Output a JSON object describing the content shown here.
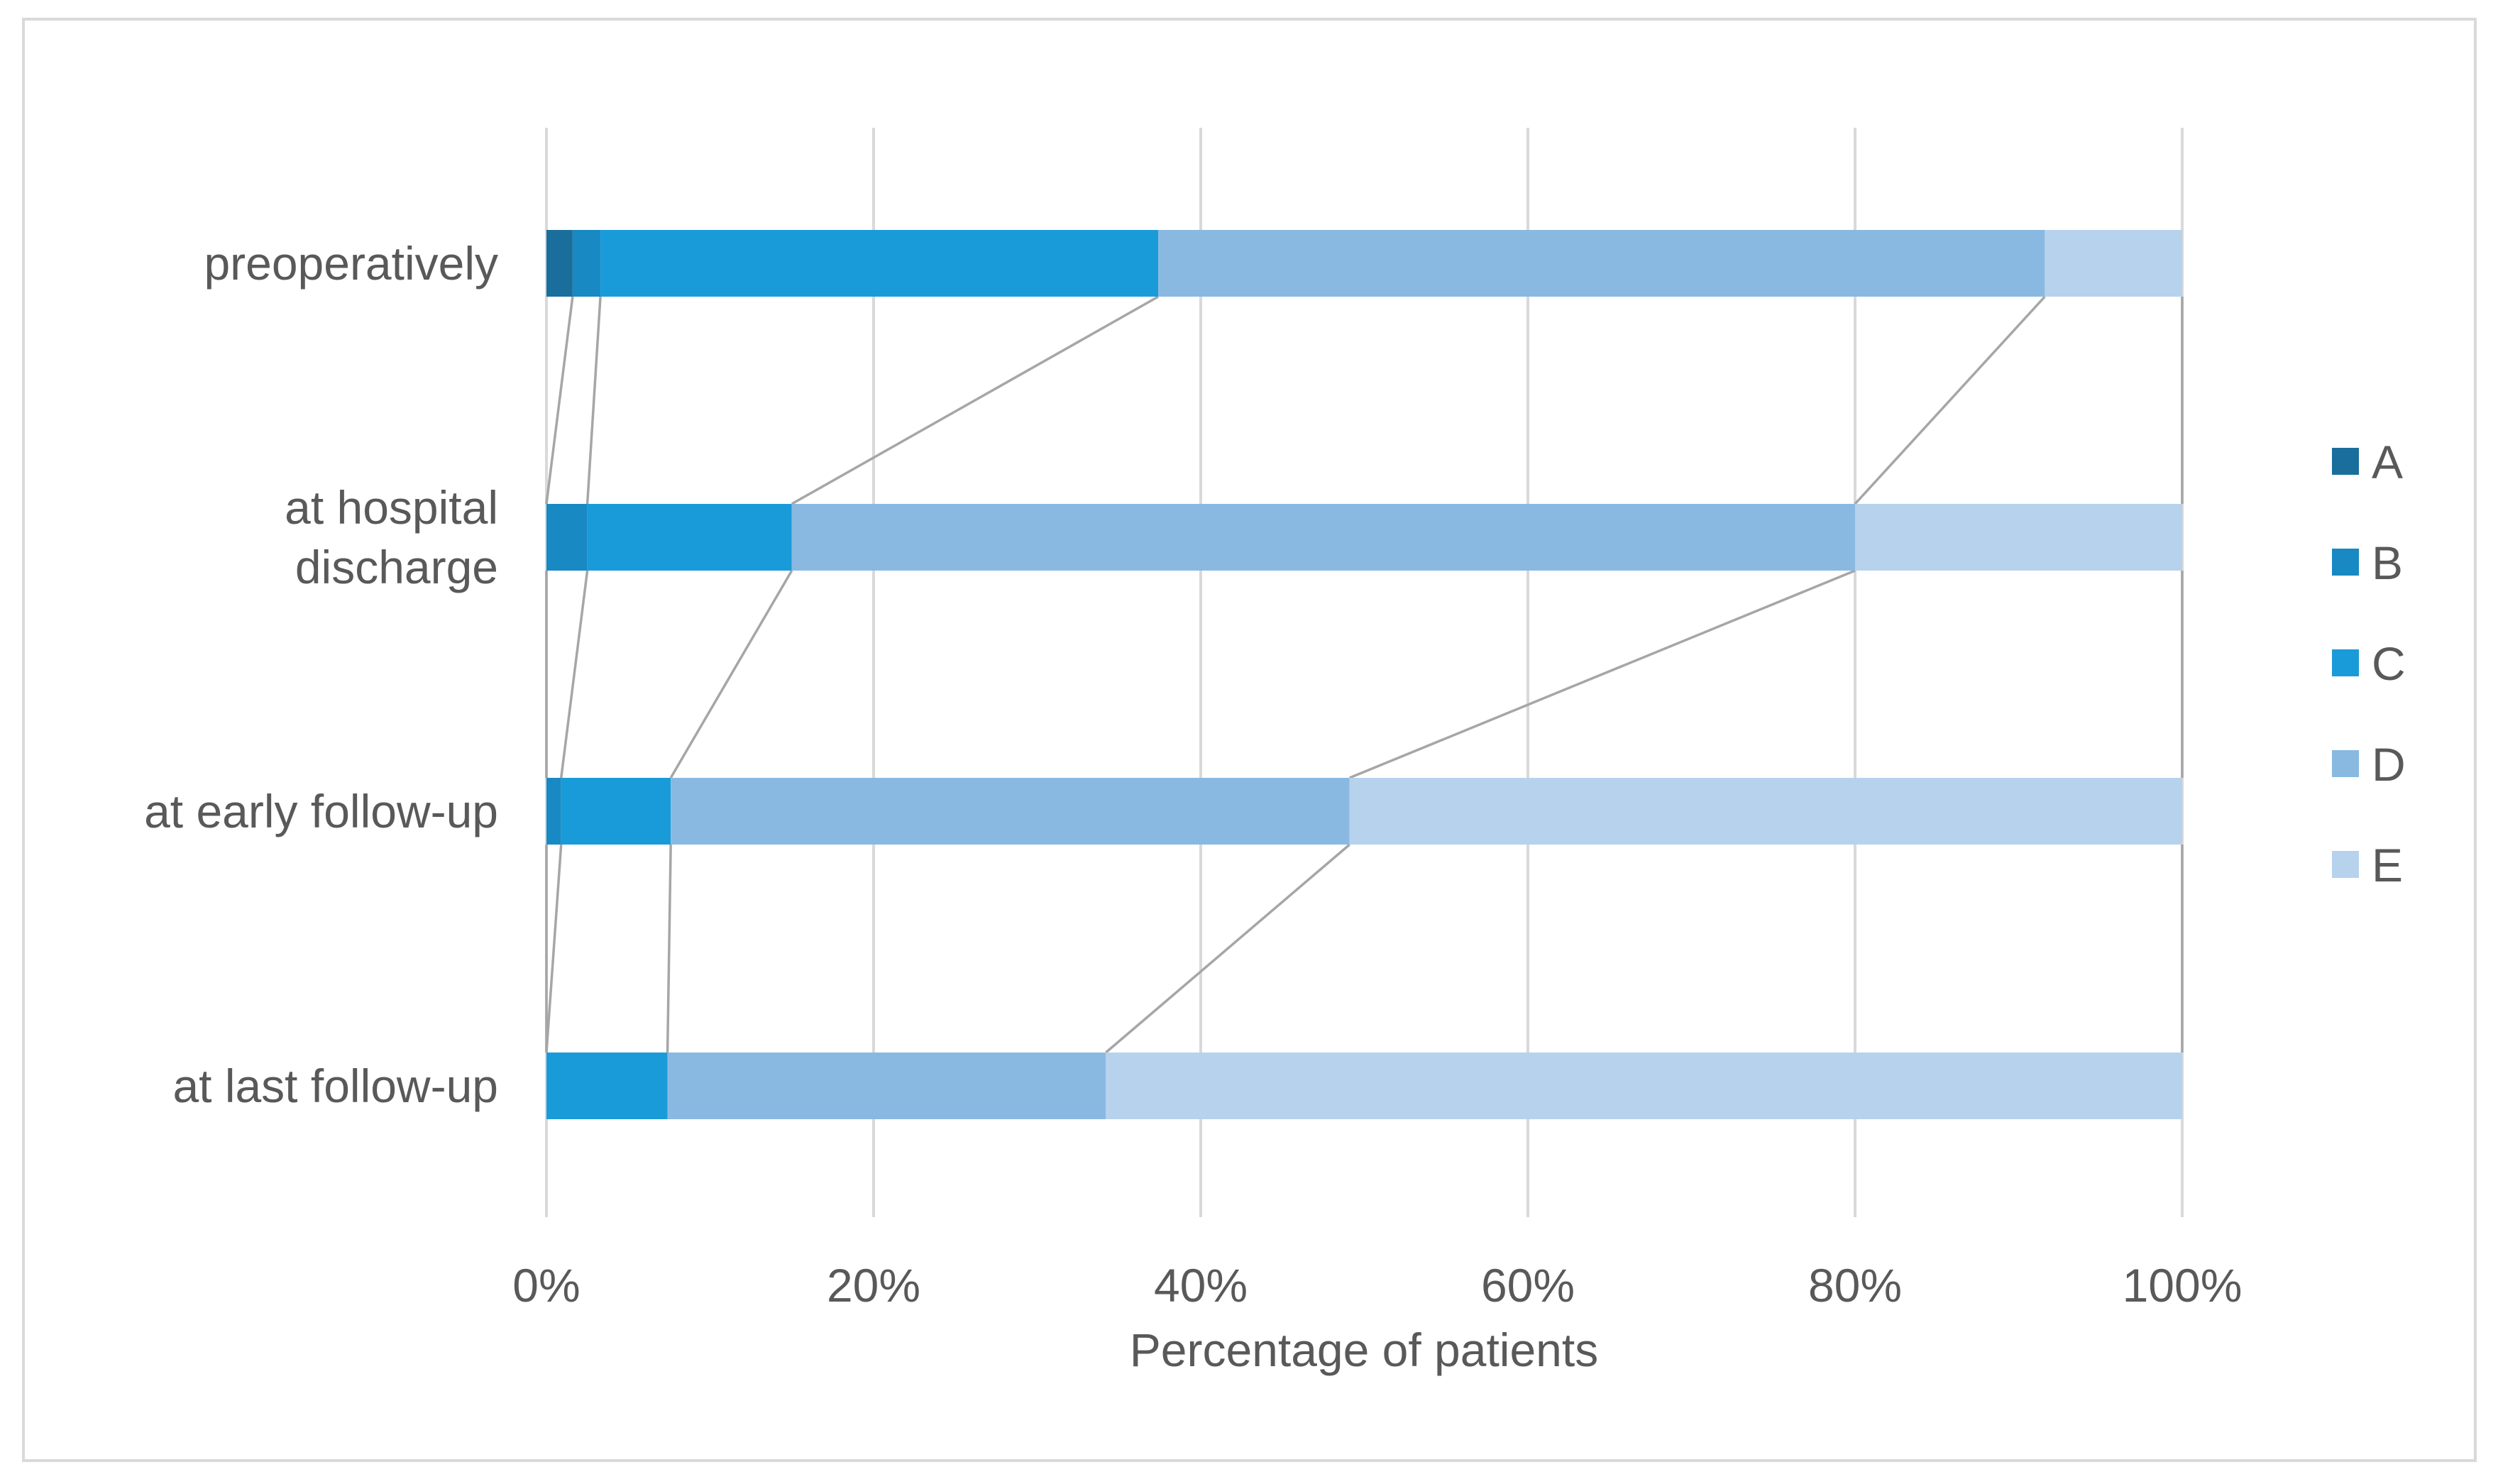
{
  "chart_data": {
    "type": "bar",
    "orientation": "horizontal",
    "stacked": "percent",
    "categories": [
      "preoperatively",
      "at hospital discharge",
      "at early follow-up",
      "at last follow-up"
    ],
    "category_label_lines": [
      [
        "preoperatively"
      ],
      [
        "at hospital",
        "discharge"
      ],
      [
        "at early follow-up"
      ],
      [
        "at last follow-up"
      ]
    ],
    "series": [
      {
        "name": "A",
        "color": "#1A6E9B",
        "values": [
          1.6,
          0,
          0,
          0
        ]
      },
      {
        "name": "B",
        "color": "#1889C2",
        "values": [
          1.7,
          2.5,
          0.9,
          0
        ]
      },
      {
        "name": "C",
        "color": "#1A9BD9",
        "values": [
          34.1,
          12.5,
          6.7,
          7.4
        ]
      },
      {
        "name": "D",
        "color": "#89B9E1",
        "values": [
          54.2,
          65.0,
          41.5,
          26.8
        ]
      },
      {
        "name": "E",
        "color": "#B7D2ED",
        "values": [
          8.4,
          20.0,
          50.9,
          65.8
        ]
      }
    ],
    "xlim": [
      0,
      100
    ],
    "x_ticks": [
      0,
      20,
      40,
      60,
      80,
      100
    ],
    "x_tick_labels": [
      "0%",
      "20%",
      "40%",
      "60%",
      "80%",
      "100%"
    ],
    "xlabel": "Percentage of patients",
    "ylabel": "",
    "title": "",
    "legend_position": "right",
    "series_connector_lines": true,
    "grid": "vertical",
    "colors": {
      "grid": "#D9D9D9",
      "connector": "#A6A6A6",
      "text": "#595959",
      "frame": "#D9D9D9"
    }
  }
}
